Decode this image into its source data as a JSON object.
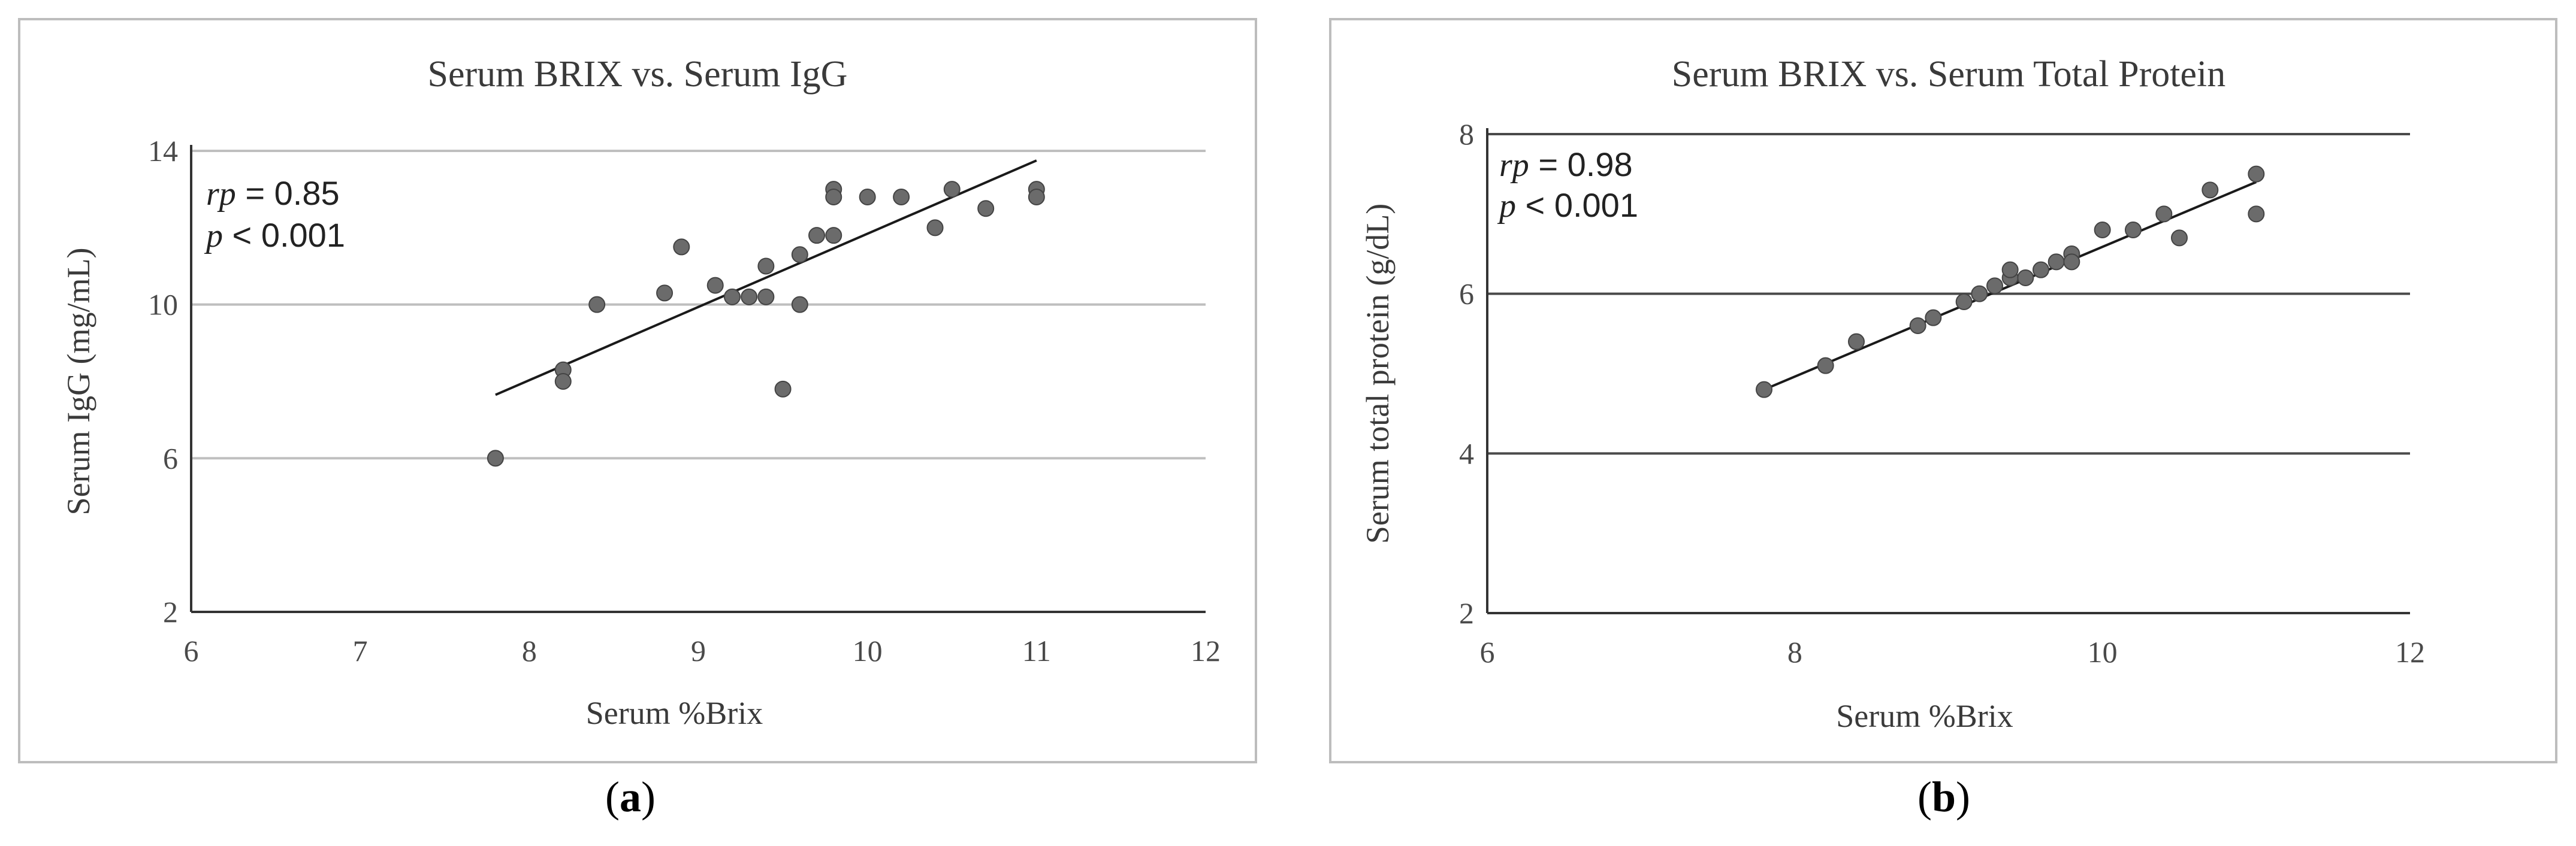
{
  "chart_data": [
    {
      "type": "scatter",
      "title": "Serum BRIX vs. Serum IgG",
      "xlabel": "Serum %Brix",
      "ylabel": "Serum IgG (mg/mL)",
      "xlim": [
        6,
        12
      ],
      "ylim": [
        2,
        14
      ],
      "xticks": [
        6,
        7,
        8,
        9,
        10,
        11,
        12
      ],
      "yticks": [
        2,
        6,
        10,
        14
      ],
      "grid": true,
      "gridline_color": "#bfbfbf",
      "point_color": "#6b6b6b",
      "annotation": {
        "rp_label": "rp",
        "rp_text": " = 0.85",
        "p_label": "p",
        "p_text": "  < 0.001"
      },
      "trendline": {
        "x": [
          7.8,
          11.0
        ],
        "y": [
          7.65,
          13.75
        ]
      },
      "series": [
        {
          "x": [
            7.8,
            8.2,
            8.2,
            8.4,
            8.8,
            8.9,
            9.1,
            9.2,
            9.3,
            9.4,
            9.4,
            9.5,
            9.6,
            9.6,
            9.7,
            9.8,
            9.8,
            9.8,
            10.0,
            10.2,
            10.4,
            10.5,
            10.7,
            11.0,
            11.0
          ],
          "y": [
            6.0,
            8.3,
            8.0,
            10.0,
            10.3,
            11.5,
            10.5,
            10.2,
            10.2,
            10.2,
            11.0,
            7.8,
            11.3,
            10.0,
            11.8,
            13.0,
            12.8,
            11.8,
            12.8,
            12.8,
            12.0,
            13.0,
            12.5,
            13.0,
            12.8
          ]
        }
      ]
    },
    {
      "type": "scatter",
      "title": "Serum BRIX vs. Serum Total Protein",
      "xlabel": "Serum %Brix",
      "ylabel": "Serum total protein (g/dL)",
      "xlim": [
        6,
        12
      ],
      "ylim": [
        2,
        8
      ],
      "xticks": [
        6,
        8,
        10,
        12
      ],
      "yticks": [
        2,
        4,
        6,
        8
      ],
      "grid": true,
      "gridline_color": "#4a4a4a",
      "point_color": "#6b6b6b",
      "annotation": {
        "rp_label": "rp",
        "rp_text": " = 0.98",
        "p_label": "p",
        "p_text": " < 0.001"
      },
      "trendline": {
        "x": [
          7.8,
          11.0
        ],
        "y": [
          4.8,
          7.4
        ]
      },
      "series": [
        {
          "x": [
            7.8,
            8.2,
            8.4,
            8.8,
            8.9,
            9.1,
            9.2,
            9.3,
            9.4,
            9.4,
            9.5,
            9.6,
            9.7,
            9.8,
            9.8,
            10.0,
            10.2,
            10.4,
            10.5,
            10.7,
            11.0,
            11.0
          ],
          "y": [
            4.8,
            5.1,
            5.4,
            5.6,
            5.7,
            5.9,
            6.0,
            6.1,
            6.2,
            6.3,
            6.2,
            6.3,
            6.4,
            6.5,
            6.4,
            6.8,
            6.8,
            7.0,
            6.7,
            7.3,
            7.5,
            7.0
          ]
        }
      ]
    }
  ],
  "sublabels": {
    "a_open": "(",
    "a_letter": "a",
    "a_close": ")",
    "b_open": "(",
    "b_letter": "b",
    "b_close": ")"
  }
}
